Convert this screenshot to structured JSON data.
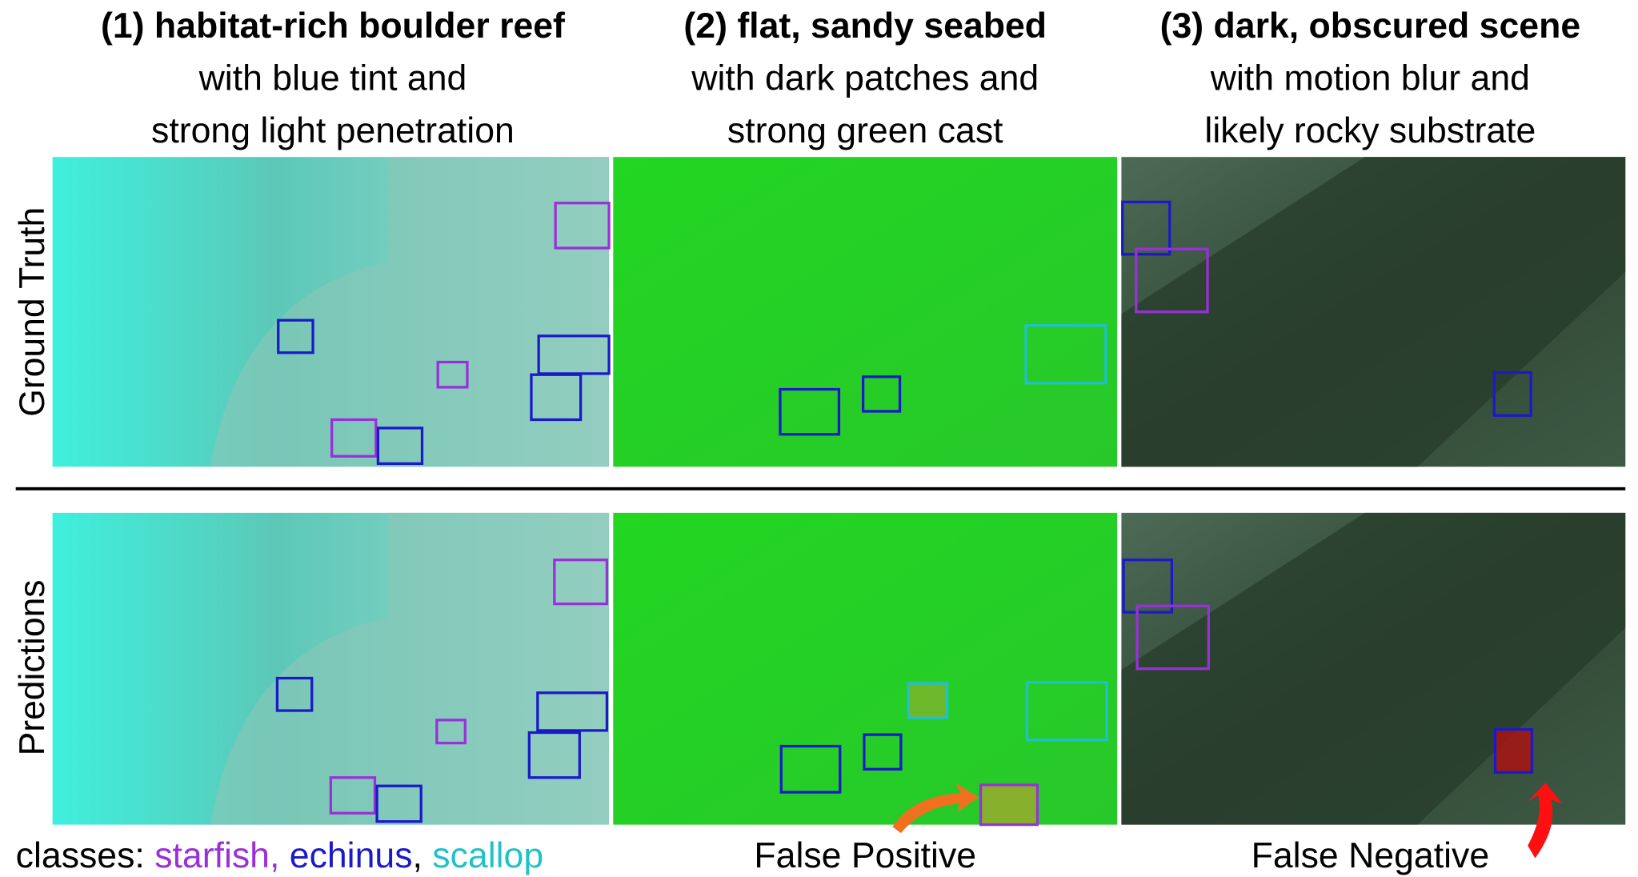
{
  "columns": [
    {
      "title": "(1) habitat-rich boulder reef",
      "lines": [
        "with blue tint and",
        "strong light penetration"
      ]
    },
    {
      "title": "(2) flat, sandy seabed",
      "lines": [
        "with dark patches and",
        "strong green cast"
      ]
    },
    {
      "title": "(3) dark, obscured scene",
      "lines": [
        "with motion blur and",
        "likely rocky substrate"
      ]
    }
  ],
  "rows": [
    "Ground Truth",
    "Predictions"
  ],
  "legend": {
    "label": "classes:",
    "items": [
      "starfish,",
      "echinus",
      ",",
      "scallop"
    ]
  },
  "captions": [
    "False Positive",
    "False Negative"
  ]
}
